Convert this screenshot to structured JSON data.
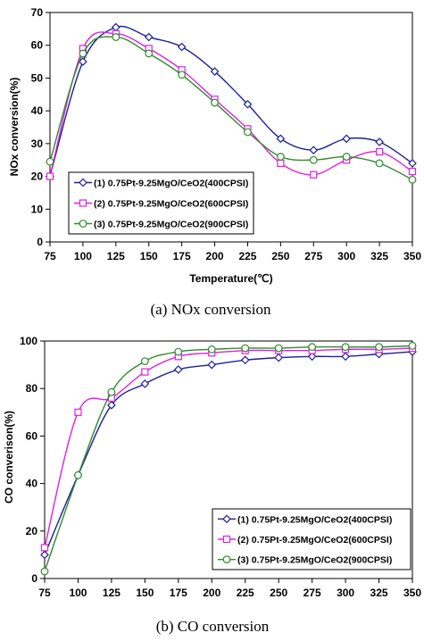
{
  "chart_data": [
    {
      "type": "line",
      "caption": "(a)  NOx  conversion",
      "xlabel": "Temperature(℃)",
      "ylabel": "NOx conversion(%)",
      "xlim": [
        75,
        350
      ],
      "ylim": [
        0,
        70
      ],
      "xticks": [
        75,
        100,
        125,
        150,
        175,
        200,
        225,
        250,
        275,
        300,
        325,
        350
      ],
      "yticks": [
        0,
        10,
        20,
        30,
        40,
        50,
        60,
        70
      ],
      "grid": false,
      "legend_position": "bottom-left",
      "x": [
        75,
        100,
        125,
        150,
        175,
        200,
        225,
        250,
        275,
        300,
        325,
        350
      ],
      "series": [
        {
          "name": "(1) 0.75Pt-9.25MgO/CeO2(400CPSI)",
          "color": "#1f1f9a",
          "marker": "diamond",
          "values": [
            20,
            55,
            65.5,
            62.5,
            59.5,
            52,
            42,
            31.5,
            28,
            31.5,
            30.5,
            24
          ]
        },
        {
          "name": "(2) 0.75Pt-9.25MgO/CeO2(600CPSI)",
          "color": "#e020e0",
          "marker": "square",
          "values": [
            20,
            59,
            63.5,
            59,
            52.5,
            43.5,
            34.5,
            24,
            20.5,
            25,
            27.5,
            21.5
          ]
        },
        {
          "name": "(3) 0.75Pt-9.25MgO/CeO2(900CPSI)",
          "color": "#2e8b2e",
          "marker": "circle",
          "values": [
            24.5,
            57.5,
            62.5,
            57.5,
            51,
            42.5,
            33.5,
            26,
            25,
            26,
            24,
            19
          ]
        }
      ]
    },
    {
      "type": "line",
      "caption": "(b)  CO  conversion",
      "xlabel": "",
      "ylabel": "CO converison(%)",
      "xlim": [
        75,
        350
      ],
      "ylim": [
        0,
        100
      ],
      "xticks": [
        75,
        100,
        125,
        150,
        175,
        200,
        225,
        250,
        275,
        300,
        325,
        350
      ],
      "yticks": [
        0,
        20,
        40,
        60,
        80,
        100
      ],
      "grid": false,
      "legend_position": "bottom-right",
      "x": [
        75,
        100,
        125,
        150,
        175,
        200,
        225,
        250,
        275,
        300,
        325,
        350
      ],
      "series": [
        {
          "name": "(1) 0.75Pt-9.25MgO/CeO2(400CPSI)",
          "color": "#1f1f9a",
          "marker": "diamond",
          "values": [
            10,
            43.5,
            73,
            82,
            88,
            90,
            92,
            93,
            93.5,
            93.5,
            94.5,
            95.5
          ]
        },
        {
          "name": "(2) 0.75Pt-9.25MgO/CeO2(600CPSI)",
          "color": "#e020e0",
          "marker": "square",
          "values": [
            13,
            70,
            76,
            87,
            93.5,
            95,
            96,
            96,
            96,
            96.5,
            96.5,
            97
          ]
        },
        {
          "name": "(3) 0.75Pt-9.25MgO/CeO2(900CPSI)",
          "color": "#2e8b2e",
          "marker": "circle",
          "values": [
            3,
            43.5,
            78.5,
            91.5,
            95.5,
            96.5,
            97,
            97,
            97.5,
            97.5,
            97.5,
            98
          ]
        }
      ]
    }
  ]
}
